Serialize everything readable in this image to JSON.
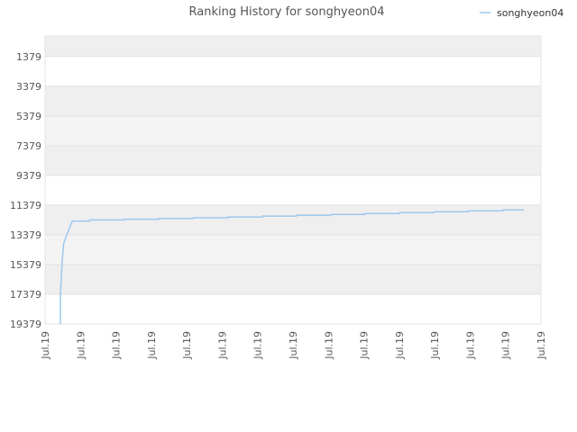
{
  "chart_data": {
    "type": "line",
    "title": "Ranking History for songhyeon04",
    "xlabel": "",
    "ylabel": "",
    "y_inverted": true,
    "ylim": [
      19379,
      0
    ],
    "y_ticks": [
      "1379",
      "3379",
      "5379",
      "7379",
      "9379",
      "11379",
      "13379",
      "15379",
      "17379",
      "19379"
    ],
    "x_ticks": [
      "Jul.19",
      "Jul.19",
      "Jul.19",
      "Jul.19",
      "Jul.19",
      "Jul.19",
      "Jul.19",
      "Jul.19",
      "Jul.19",
      "Jul.19",
      "Jul.19",
      "Jul.19",
      "Jul.19",
      "Jul.19",
      "Jul.19"
    ],
    "legend_position": "top-right",
    "grid": true,
    "series": [
      {
        "name": "songhyeon04",
        "color": "#9cc8ee",
        "points": [
          {
            "x": 0.0,
            "y": 19379
          },
          {
            "x": 0.0,
            "y": 17400
          },
          {
            "x": 0.004,
            "y": 15000
          },
          {
            "x": 0.007,
            "y": 13950
          },
          {
            "x": 0.014,
            "y": 13300
          },
          {
            "x": 0.025,
            "y": 12450
          },
          {
            "x": 0.061,
            "y": 12450
          },
          {
            "x": 0.061,
            "y": 12380
          },
          {
            "x": 0.133,
            "y": 12380
          },
          {
            "x": 0.133,
            "y": 12330
          },
          {
            "x": 0.205,
            "y": 12330
          },
          {
            "x": 0.205,
            "y": 12280
          },
          {
            "x": 0.276,
            "y": 12280
          },
          {
            "x": 0.276,
            "y": 12230
          },
          {
            "x": 0.348,
            "y": 12230
          },
          {
            "x": 0.348,
            "y": 12180
          },
          {
            "x": 0.42,
            "y": 12180
          },
          {
            "x": 0.42,
            "y": 12120
          },
          {
            "x": 0.491,
            "y": 12120
          },
          {
            "x": 0.491,
            "y": 12060
          },
          {
            "x": 0.563,
            "y": 12060
          },
          {
            "x": 0.563,
            "y": 12000
          },
          {
            "x": 0.634,
            "y": 12000
          },
          {
            "x": 0.634,
            "y": 11940
          },
          {
            "x": 0.706,
            "y": 11940
          },
          {
            "x": 0.706,
            "y": 11880
          },
          {
            "x": 0.778,
            "y": 11880
          },
          {
            "x": 0.778,
            "y": 11820
          },
          {
            "x": 0.849,
            "y": 11820
          },
          {
            "x": 0.849,
            "y": 11760
          },
          {
            "x": 0.921,
            "y": 11760
          },
          {
            "x": 0.921,
            "y": 11700
          },
          {
            "x": 0.964,
            "y": 11700
          }
        ]
      }
    ]
  }
}
